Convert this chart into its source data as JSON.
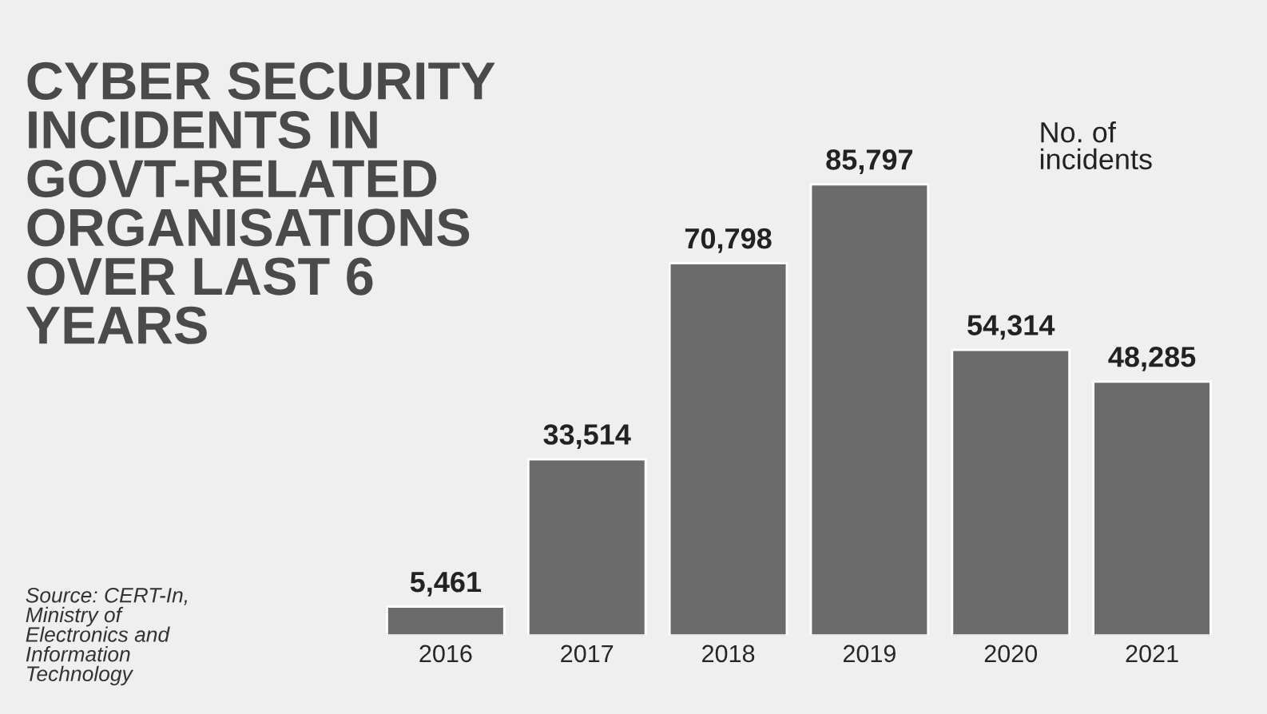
{
  "chart_data": {
    "type": "bar",
    "title": "CYBER SECURITY\nINCIDENTS IN\nGOVT-RELATED\nORGANISATIONS\nOVER LAST 6\nYEARS",
    "categories": [
      "2016",
      "2017",
      "2018",
      "2019",
      "2020",
      "2021"
    ],
    "values": [
      5461,
      33514,
      70798,
      85797,
      54314,
      48285
    ],
    "value_labels": [
      "5,461",
      "33,514",
      "70,798",
      "85,797",
      "54,314",
      "48,285"
    ],
    "color": "#6b6b6b",
    "annotations": [
      "No. of\nincidents",
      "Source: CERT-In,\nMinistry of\nElectronics and\nInformation\nTechnology"
    ],
    "grid": false,
    "legend": false
  }
}
